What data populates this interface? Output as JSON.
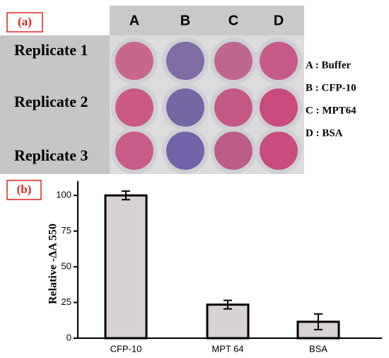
{
  "panel_labels": [
    "(a)",
    "(b)"
  ],
  "plate": {
    "columns": [
      "A",
      "B",
      "C",
      "D"
    ],
    "rows": [
      "Replicate 1",
      "Replicate 2",
      "Replicate 3"
    ],
    "legend": [
      "A : Buffer",
      "B : CFP-10",
      "C : MPT64",
      "D : BSA"
    ]
  },
  "chart_data": {
    "type": "bar",
    "y_label": "Relative -ΔA 550",
    "categories": [
      "CFP-10",
      "MPT 64",
      "BSA"
    ],
    "values": [
      100,
      23.5,
      11.5
    ],
    "errors": [
      3,
      3,
      5.5
    ],
    "color": "#d8d2d5",
    "ylim": [
      0,
      110
    ],
    "yticks": [
      0,
      25,
      50,
      75,
      100
    ]
  }
}
